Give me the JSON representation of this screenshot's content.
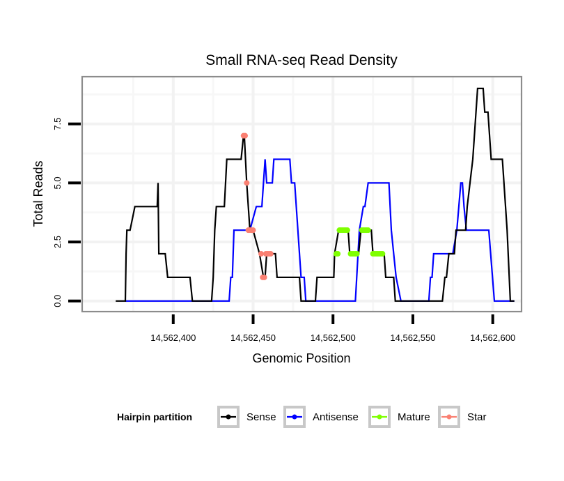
{
  "chart_data": {
    "type": "line",
    "title": "Small RNA-seq Read Density",
    "xlabel": "Genomic Position",
    "ylabel": "Total Reads",
    "xlim": [
      14562343,
      14562618
    ],
    "ylim": [
      -0.45,
      9.5
    ],
    "grid": true,
    "x_ticks": [
      14562400,
      14562450,
      14562500,
      14562550,
      14562600
    ],
    "x_tick_labels": [
      "14,562,400",
      "14,562,450",
      "14,562,500",
      "14,562,550",
      "14,562,600"
    ],
    "y_ticks": [
      0,
      2.5,
      5,
      7.5
    ],
    "y_tick_labels": [
      "0.0",
      "2.5",
      "5.0",
      "7.5"
    ],
    "legend": {
      "title": "Hairpin partition",
      "placement": "bottom",
      "entries": [
        {
          "label": "Sense",
          "color": "#000000"
        },
        {
          "label": "Antisense",
          "color": "#0000ff"
        },
        {
          "label": "Mature",
          "color": "#7fff00"
        },
        {
          "label": "Star",
          "color": "#fa8072"
        }
      ]
    },
    "series": [
      {
        "name": "Sense",
        "color": "#000000",
        "kind": "line",
        "points": [
          [
            14562364,
            0
          ],
          [
            14562370,
            0
          ],
          [
            14562370.5,
            2
          ],
          [
            14562371,
            3
          ],
          [
            14562373,
            3
          ],
          [
            14562376,
            4
          ],
          [
            14562390,
            4
          ],
          [
            14562390.5,
            5
          ],
          [
            14562391,
            2
          ],
          [
            14562395,
            2
          ],
          [
            14562396.5,
            1
          ],
          [
            14562410.5,
            1
          ],
          [
            14562412,
            0
          ],
          [
            14562424,
            0
          ],
          [
            14562425,
            1
          ],
          [
            14562426,
            3
          ],
          [
            14562427,
            4
          ],
          [
            14562432,
            4
          ],
          [
            14562433.5,
            6
          ],
          [
            14562442.5,
            6
          ],
          [
            14562444,
            7
          ],
          [
            14562444.5,
            7
          ],
          [
            14562446,
            5
          ],
          [
            14562448,
            3
          ],
          [
            14562450,
            3
          ],
          [
            14562454,
            2
          ],
          [
            14562456.5,
            1
          ],
          [
            14562457.5,
            1
          ],
          [
            14562458.5,
            2
          ],
          [
            14562464,
            2
          ],
          [
            14562465,
            1
          ],
          [
            14562479,
            1
          ],
          [
            14562480,
            0
          ],
          [
            14562489,
            0
          ],
          [
            14562490,
            1
          ],
          [
            14562500.5,
            1
          ],
          [
            14562501,
            2
          ],
          [
            14562503.5,
            3
          ],
          [
            14562509.5,
            3
          ],
          [
            14562510.5,
            2
          ],
          [
            14562516,
            2
          ],
          [
            14562517.5,
            3
          ],
          [
            14562524,
            3
          ],
          [
            14562525,
            2
          ],
          [
            14562532,
            2
          ],
          [
            14562533,
            1
          ],
          [
            14562538,
            1
          ],
          [
            14562539,
            0
          ],
          [
            14562568.5,
            0
          ],
          [
            14562570,
            1
          ],
          [
            14562571,
            1
          ],
          [
            14562572.5,
            2
          ],
          [
            14562576,
            2
          ],
          [
            14562577,
            3
          ],
          [
            14562583,
            3
          ],
          [
            14562584,
            4
          ],
          [
            14562587.5,
            6
          ],
          [
            14562589.5,
            8
          ],
          [
            14562590.5,
            9
          ],
          [
            14562594,
            9
          ],
          [
            14562595,
            8
          ],
          [
            14562597,
            8
          ],
          [
            14562599,
            6
          ],
          [
            14562606,
            6
          ],
          [
            14562609,
            3
          ],
          [
            14562611,
            0
          ],
          [
            14562613.5,
            0
          ]
        ]
      },
      {
        "name": "Antisense",
        "color": "#0000ff",
        "kind": "line",
        "points": [
          [
            14562370,
            0
          ],
          [
            14562435,
            0
          ],
          [
            14562436,
            1
          ],
          [
            14562437,
            1
          ],
          [
            14562438,
            3
          ],
          [
            14562448,
            3
          ],
          [
            14562452,
            4
          ],
          [
            14562455.5,
            4
          ],
          [
            14562457.5,
            6
          ],
          [
            14562458.5,
            5
          ],
          [
            14562462,
            5
          ],
          [
            14562463,
            6
          ],
          [
            14562473,
            6
          ],
          [
            14562474,
            5
          ],
          [
            14562476,
            5
          ],
          [
            14562480,
            1
          ],
          [
            14562482,
            1
          ],
          [
            14562483,
            0
          ],
          [
            14562514,
            0
          ],
          [
            14562516.5,
            3
          ],
          [
            14562519,
            4
          ],
          [
            14562520,
            4
          ],
          [
            14562522,
            5
          ],
          [
            14562535,
            5
          ],
          [
            14562536.5,
            3
          ],
          [
            14562538,
            2
          ],
          [
            14562539.5,
            1
          ],
          [
            14562542.5,
            0
          ],
          [
            14562560,
            0
          ],
          [
            14562561,
            1
          ],
          [
            14562562,
            1
          ],
          [
            14562563,
            2
          ],
          [
            14562575,
            2
          ],
          [
            14562577.5,
            3
          ],
          [
            14562580,
            5
          ],
          [
            14562581,
            5
          ],
          [
            14562582,
            4
          ],
          [
            14562583.5,
            3
          ],
          [
            14562597.5,
            3
          ],
          [
            14562601,
            0
          ],
          [
            14562613.5,
            0
          ]
        ]
      },
      {
        "name": "Mature",
        "color": "#7fff00",
        "kind": "points",
        "points": [
          [
            14562502,
            2
          ],
          [
            14562503,
            2
          ],
          [
            14562504,
            3
          ],
          [
            14562505,
            3
          ],
          [
            14562506,
            3
          ],
          [
            14562507,
            3
          ],
          [
            14562508,
            3
          ],
          [
            14562509,
            3
          ],
          [
            14562511,
            2
          ],
          [
            14562512,
            2
          ],
          [
            14562513,
            2
          ],
          [
            14562514,
            2
          ],
          [
            14562515,
            2
          ],
          [
            14562518,
            3
          ],
          [
            14562519,
            3
          ],
          [
            14562520,
            3
          ],
          [
            14562521,
            3
          ],
          [
            14562522,
            3
          ],
          [
            14562525,
            2
          ],
          [
            14562526,
            2
          ],
          [
            14562527,
            2
          ],
          [
            14562528,
            2
          ],
          [
            14562529,
            2
          ],
          [
            14562530,
            2
          ],
          [
            14562531,
            2
          ]
        ]
      },
      {
        "name": "Star",
        "color": "#fa8072",
        "kind": "points",
        "points": [
          [
            14562444,
            7
          ],
          [
            14562445,
            7
          ],
          [
            14562446,
            5
          ],
          [
            14562447,
            3
          ],
          [
            14562448,
            3
          ],
          [
            14562449,
            3
          ],
          [
            14562450,
            3
          ],
          [
            14562455,
            2
          ],
          [
            14562456,
            1
          ],
          [
            14562457,
            1
          ],
          [
            14562458,
            2
          ],
          [
            14562459,
            2
          ],
          [
            14562460,
            2
          ],
          [
            14562461,
            2
          ]
        ]
      }
    ]
  }
}
